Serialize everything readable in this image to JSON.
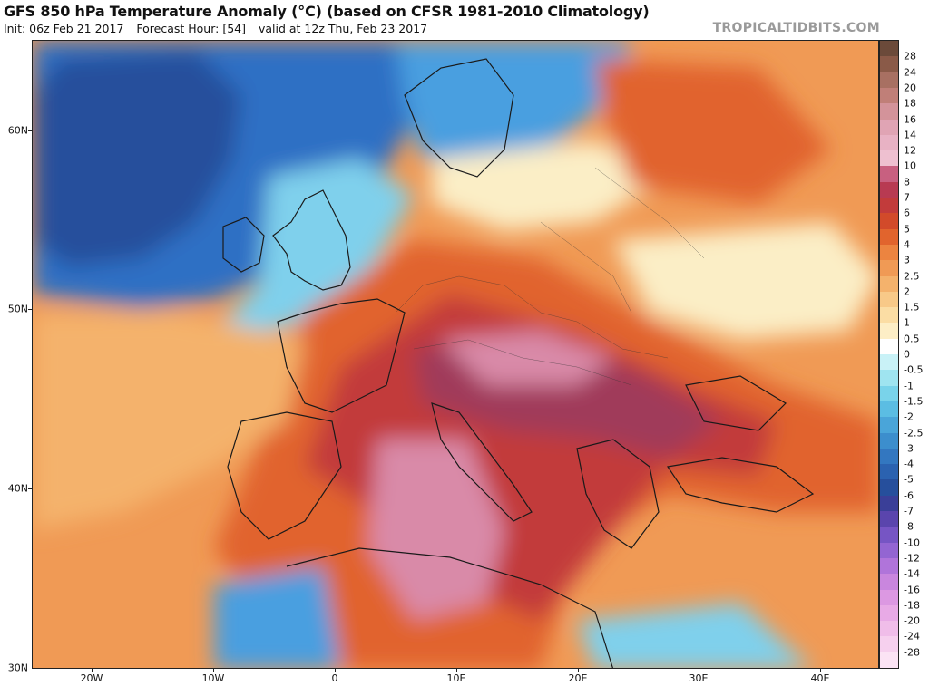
{
  "header": {
    "title": "GFS 850 hPa Temperature Anomaly (°C) (based on CFSR 1981-2010 Climatology)",
    "init": "Init: 06z Feb 21 2017",
    "forecast_hour": "Forecast Hour: [54]",
    "valid": "valid at 12z Thu, Feb 23 2017",
    "watermark": "TROPICALTIDBITS.COM"
  },
  "axes": {
    "lat_labels": [
      "60N",
      "50N",
      "40N",
      "30N"
    ],
    "lon_labels": [
      "20W",
      "10W",
      "0",
      "10E",
      "20E",
      "30E",
      "40E"
    ]
  },
  "colorbar": {
    "labels": [
      "28",
      "24",
      "20",
      "18",
      "16",
      "14",
      "12",
      "10",
      "8",
      "7",
      "6",
      "5",
      "4",
      "3",
      "2.5",
      "2",
      "1.5",
      "1",
      "0.5",
      "0",
      "-0.5",
      "-1",
      "-1.5",
      "-2",
      "-2.5",
      "-3",
      "-4",
      "-5",
      "-6",
      "-7",
      "-8",
      "-10",
      "-12",
      "-14",
      "-16",
      "-18",
      "-20",
      "-24",
      "-28"
    ],
    "colors": [
      "#6b4a3a",
      "#8a5a48",
      "#a87062",
      "#c07f78",
      "#d3939a",
      "#e0a4b4",
      "#e8b2c4",
      "#eec0d0",
      "#c86080",
      "#b83a52",
      "#c23b3b",
      "#d24a2a",
      "#e1642d",
      "#ec8440",
      "#f09a55",
      "#f4b26c",
      "#f8c988",
      "#fbdda4",
      "#fdeec6",
      "#ffffff",
      "#c9f2f7",
      "#9fe4f0",
      "#79d3ea",
      "#5bbde3",
      "#4aa5d9",
      "#3c8ecd",
      "#3377c0",
      "#2b62b0",
      "#264f9c",
      "#3a3f98",
      "#5a45ad",
      "#7655c4",
      "#9365d2",
      "#b074da",
      "#c986de",
      "#dc98e2",
      "#e8aae6",
      "#f0bde9",
      "#f6d0ee",
      "#fbe3f4"
    ]
  },
  "map_colors": {
    "ocean_cold": "#2f6fc4",
    "cold": "#4a9fe0",
    "cool": "#7fd0ec",
    "neutral": "#fbeec6",
    "warm": "#f4b26c",
    "hot": "#e1642d",
    "very_hot": "#c23b3b",
    "extreme": "#a03a5a",
    "peak": "#d98aa8"
  }
}
